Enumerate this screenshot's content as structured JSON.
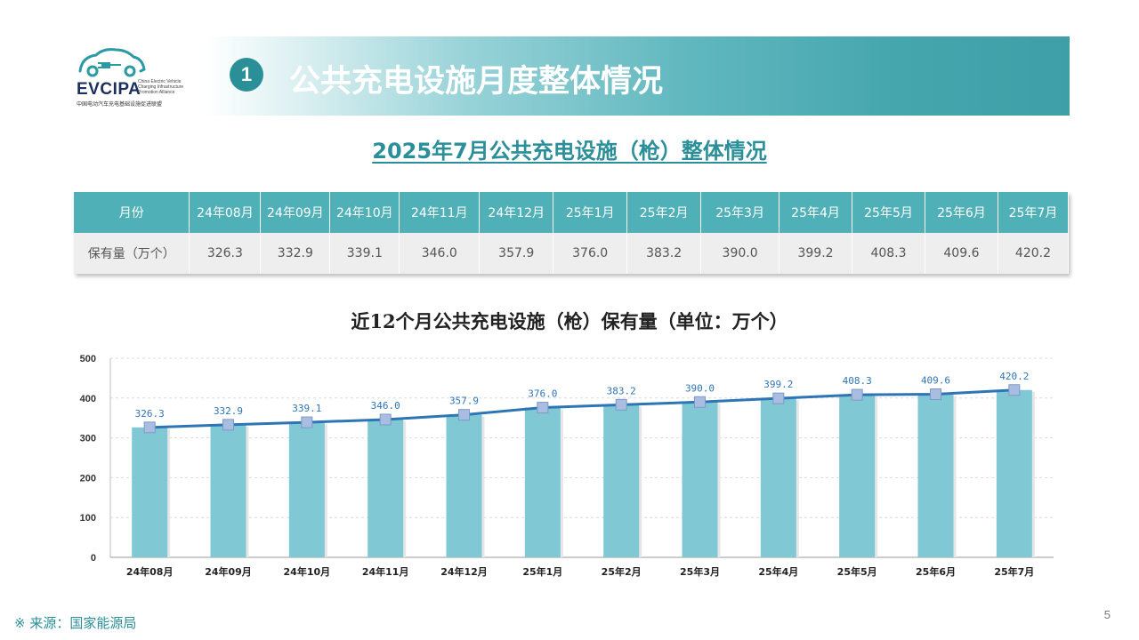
{
  "logo": {
    "name": "EVCIPA",
    "en_lines": [
      "China Electric Vehicle",
      "Charging Infrastructure",
      "Promotion Alliance"
    ],
    "cn": "中国电动汽车充电基础设施促进联盟"
  },
  "banner": {
    "number": "1",
    "title": "公共充电设施月度整体情况"
  },
  "subtitle": "2025年7月公共充电设施（枪）整体情况",
  "table": {
    "header_label": "月份",
    "row_label": "保有量（万个）",
    "months": [
      "24年08月",
      "24年09月",
      "24年10月",
      "24年11月",
      "24年12月",
      "25年1月",
      "25年2月",
      "25年3月",
      "25年4月",
      "25年5月",
      "25年6月",
      "25年7月"
    ],
    "values": [
      "326.3",
      "332.9",
      "339.1",
      "346.0",
      "357.9",
      "376.0",
      "383.2",
      "390.0",
      "399.2",
      "408.3",
      "409.6",
      "420.2"
    ]
  },
  "chart_data": {
    "type": "bar",
    "title": "近12个月公共充电设施（枪）保有量（单位：万个）",
    "categories": [
      "24年08月",
      "24年09月",
      "24年10月",
      "24年11月",
      "24年12月",
      "25年1月",
      "25年2月",
      "25年3月",
      "25年4月",
      "25年5月",
      "25年6月",
      "25年7月"
    ],
    "values": [
      326.3,
      332.9,
      339.1,
      346.0,
      357.9,
      376.0,
      383.2,
      390.0,
      399.2,
      408.3,
      409.6,
      420.2
    ],
    "value_labels": [
      "326.3",
      "332.9",
      "339.1",
      "346.0",
      "357.9",
      "376.0",
      "383.2",
      "390.0",
      "399.2",
      "408.3",
      "409.6",
      "420.2"
    ],
    "overlay": "line",
    "ylim": [
      0,
      500
    ],
    "yticks": [
      0,
      100,
      200,
      300,
      400,
      500
    ],
    "grid": true,
    "colors": {
      "bar": "#7fc8d4",
      "line": "#2e75b6",
      "marker": "#a9bde0",
      "label": "#2e75b6"
    }
  },
  "footer": {
    "source": "※ 来源：国家能源局",
    "page": "5"
  }
}
